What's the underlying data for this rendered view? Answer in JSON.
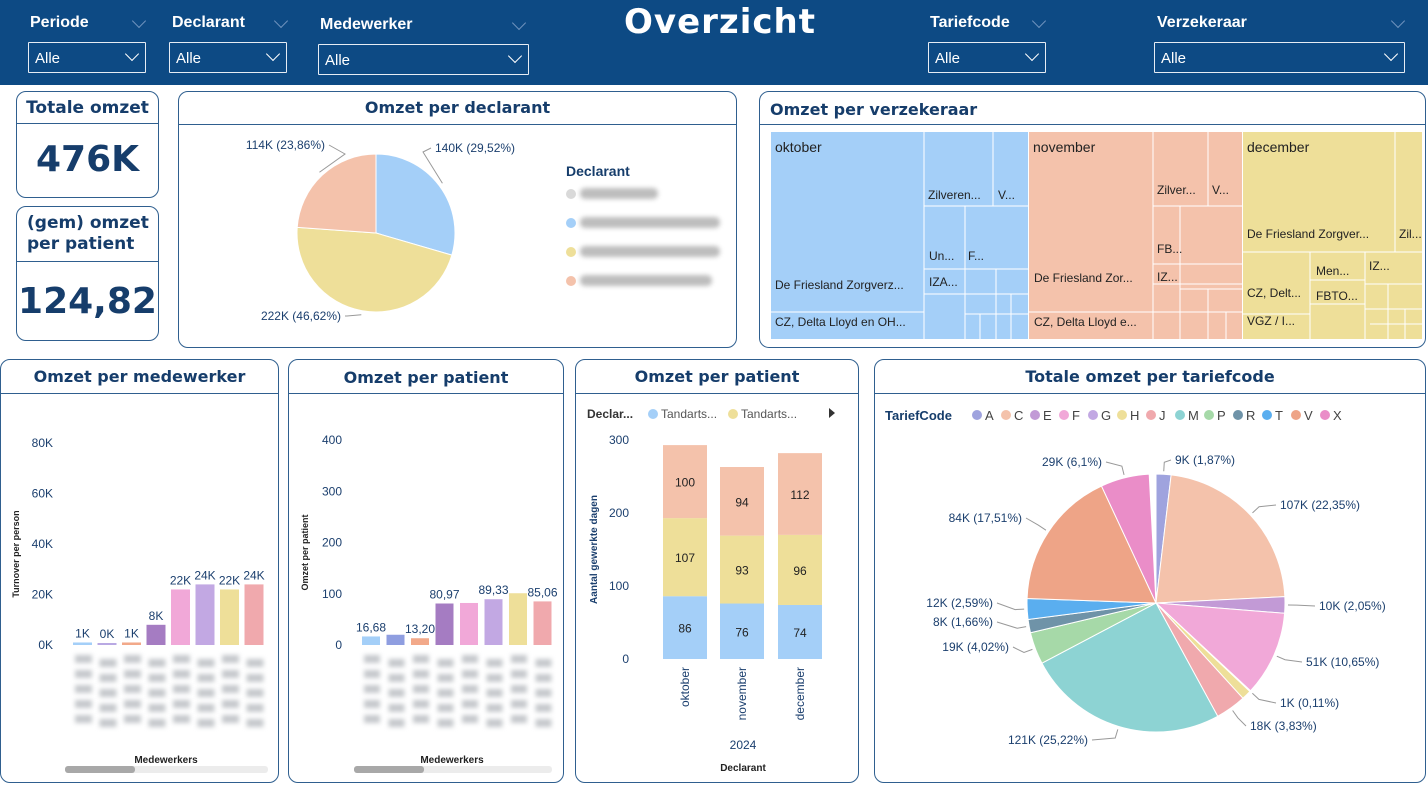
{
  "header": {
    "title": "Overzicht",
    "slicers": [
      {
        "label": "Periode",
        "value": "Alle"
      },
      {
        "label": "Declarant",
        "value": "Alle"
      },
      {
        "label": "Medewerker",
        "value": "Alle"
      },
      {
        "label": "Tariefcode",
        "value": "Alle"
      },
      {
        "label": "Verzekeraar",
        "value": "Alle"
      }
    ]
  },
  "kpis": {
    "total_label": "Totale omzet",
    "total_value": "476K",
    "avg_label_1": "(gem) omzet",
    "avg_label_2": "per patient",
    "avg_value": "124,82"
  },
  "colors": {
    "header_bg": "#0d4a84",
    "border": "#2f5f8f",
    "peach": "#f4c2ab",
    "blue": "#a4cff8",
    "yellow": "#eedf99"
  },
  "declarant_pie": {
    "title": "Omzet per declarant",
    "legend_title": "Declarant",
    "slices": [
      {
        "label": "140K (29,52%)",
        "pct": 29.52,
        "color": "#a4cff8"
      },
      {
        "label": "222K (46,62%)",
        "pct": 46.62,
        "color": "#eedf99"
      },
      {
        "label": "114K (23,86%)",
        "pct": 23.86,
        "color": "#f4c2ab"
      }
    ],
    "legend_colors": [
      "#d9d9d9",
      "#a4cff8",
      "#eedf99",
      "#f4c2ab"
    ]
  },
  "treemap": {
    "title": "Omzet per verzekeraar",
    "groups": [
      {
        "name": "oktober",
        "color": "#a4cff8",
        "labels": [
          "Zilveren...",
          "V...",
          "Un...",
          "F...",
          "IZA...",
          "De Friesland Zorgverz...",
          "CZ, Delta Lloyd en OH..."
        ]
      },
      {
        "name": "november",
        "color": "#f4c2ab",
        "labels": [
          "Zilver...",
          "V...",
          "FB...",
          "IZ...",
          "De Friesland Zor...",
          "CZ, Delta Lloyd e..."
        ]
      },
      {
        "name": "december",
        "color": "#eedf99",
        "labels": [
          "De Friesland Zorgver...",
          "Zil...",
          "Men...",
          "IZ...",
          "FBTO...",
          "CZ, Delt...",
          "VGZ / I..."
        ]
      }
    ]
  },
  "chart_data": [
    {
      "type": "bar",
      "title": "Omzet per medewerker",
      "xlabel": "Medewerkers",
      "ylabel": "Turnover per person",
      "ylim": [
        0,
        80
      ],
      "yticks": [
        "0K",
        "20K",
        "40K",
        "60K",
        "80K"
      ],
      "values": [
        1,
        0.3,
        1,
        8,
        22,
        24,
        22,
        24
      ],
      "labels": [
        "1K",
        "0K",
        "1K",
        "8K",
        "22K",
        "24K",
        "22K",
        "24K"
      ],
      "colors": [
        "#a4cff8",
        "#b9a9e3",
        "#f2a98a",
        "#a57cc2",
        "#f1a8d8",
        "#c2a8e3",
        "#eedf99",
        "#f0a9ad"
      ]
    },
    {
      "type": "bar",
      "title": "Omzet per patient",
      "xlabel": "Medewerkers",
      "ylabel": "Omzet per patient",
      "ylim": [
        0,
        400
      ],
      "yticks": [
        "0",
        "100",
        "200",
        "300",
        "400"
      ],
      "values": [
        16.68,
        20,
        13.2,
        80.97,
        82,
        89.33,
        101,
        85.06
      ],
      "labels": [
        "16,68",
        "",
        "13,20",
        "80,97",
        "",
        "89,33",
        "",
        "85,06"
      ],
      "colors": [
        "#a4cff8",
        "#8f9ee0",
        "#f2a98a",
        "#a57cc2",
        "#f1a8d8",
        "#c2a8e3",
        "#eedf99",
        "#f0a9ad"
      ]
    },
    {
      "type": "bar",
      "stacked": true,
      "title": "Omzet per patient",
      "legend_title": "Declar...",
      "legend": [
        "Tandarts...",
        "Tandarts..."
      ],
      "xlabel": "Declarant",
      "xgroup": "2024",
      "ylabel": "Aantal gewerkte dagen",
      "ylim": [
        0,
        300
      ],
      "yticks": [
        "0",
        "100",
        "200",
        "300"
      ],
      "categories": [
        "oktober",
        "november",
        "december"
      ],
      "series": [
        {
          "values": [
            86,
            76,
            74
          ],
          "color": "#a4cff8"
        },
        {
          "values": [
            107,
            93,
            96
          ],
          "color": "#eedf99"
        },
        {
          "values": [
            100,
            94,
            112
          ],
          "color": "#f4c2ab"
        }
      ]
    },
    {
      "type": "pie",
      "title": "Totale omzet per tariefcode",
      "legend_title": "TariefCode",
      "legend": [
        {
          "code": "A",
          "color": "#9fa3de"
        },
        {
          "code": "C",
          "color": "#f4c2ab"
        },
        {
          "code": "E",
          "color": "#c29ad6"
        },
        {
          "code": "F",
          "color": "#f1a8d8"
        },
        {
          "code": "G",
          "color": "#c2a8e3"
        },
        {
          "code": "H",
          "color": "#eedf99"
        },
        {
          "code": "J",
          "color": "#f0a9ad"
        },
        {
          "code": "M",
          "color": "#8dd3d3"
        },
        {
          "code": "P",
          "color": "#a6d9a8"
        },
        {
          "code": "R",
          "color": "#6f93a8"
        },
        {
          "code": "T",
          "color": "#5aaeef"
        },
        {
          "code": "V",
          "color": "#eea487"
        },
        {
          "code": "X",
          "color": "#ea8dc8"
        }
      ],
      "slices": [
        {
          "label": "9K (1,87%)",
          "pct": 1.87,
          "color": "#9fa3de"
        },
        {
          "label": "107K (22,35%)",
          "pct": 22.35,
          "color": "#f4c2ab"
        },
        {
          "label": "10K (2,05%)",
          "pct": 2.05,
          "color": "#c29ad6"
        },
        {
          "label": "51K (10,65%)",
          "pct": 10.65,
          "color": "#f1a8d8"
        },
        {
          "label": "1K (0,11%)",
          "pct": 0.11,
          "color": "#c2a8e3"
        },
        {
          "label": "",
          "pct": 1.2,
          "color": "#eedf99"
        },
        {
          "label": "18K (3,83%)",
          "pct": 3.83,
          "color": "#f0a9ad"
        },
        {
          "label": "121K (25,22%)",
          "pct": 25.22,
          "color": "#8dd3d3"
        },
        {
          "label": "19K (4,02%)",
          "pct": 4.02,
          "color": "#a6d9a8"
        },
        {
          "label": "8K (1,66%)",
          "pct": 1.66,
          "color": "#6f93a8"
        },
        {
          "label": "12K (2,59%)",
          "pct": 2.59,
          "color": "#5aaeef"
        },
        {
          "label": "84K (17,51%)",
          "pct": 17.51,
          "color": "#eea487"
        },
        {
          "label": "29K (6,1%)",
          "pct": 6.1,
          "color": "#ea8dc8"
        }
      ]
    }
  ]
}
